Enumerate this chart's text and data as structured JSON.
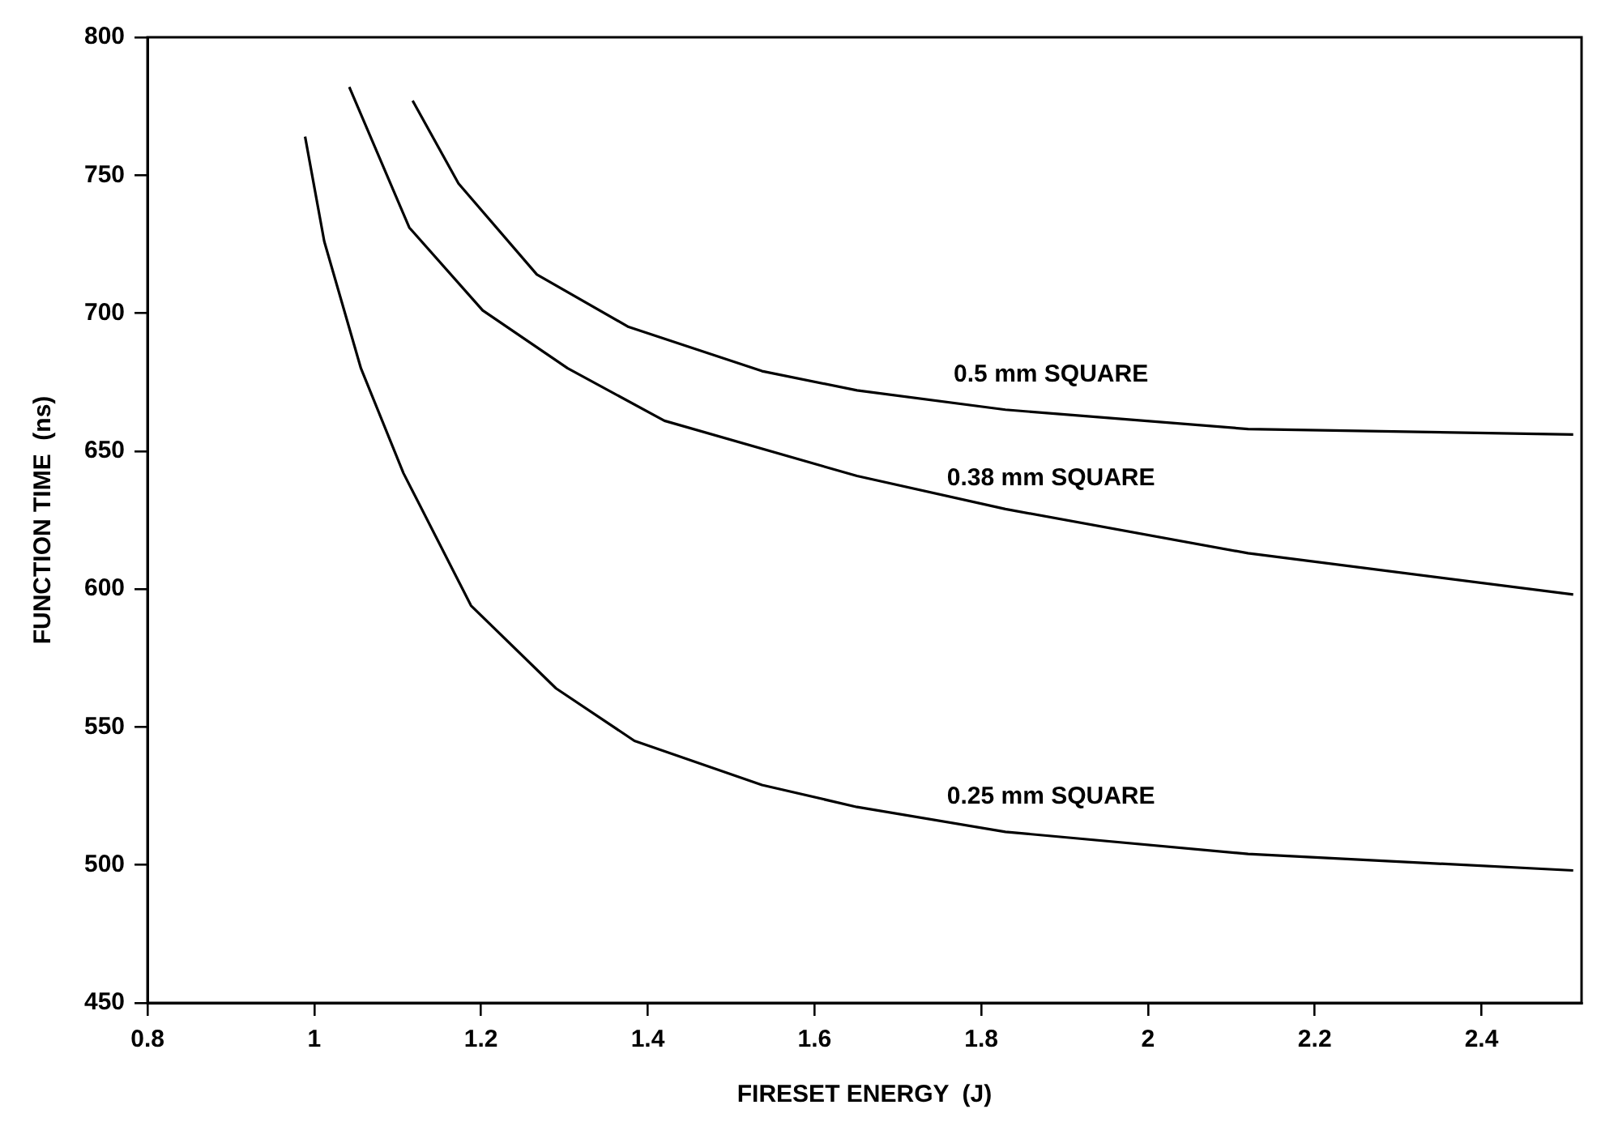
{
  "chart_data": {
    "type": "line",
    "xlabel": "FIRESET ENERGY  (J)",
    "ylabel": "FUNCTION TIME  (ns)",
    "xlim": [
      0.8,
      2.52
    ],
    "xticks": [
      0.8,
      1,
      1.2,
      1.4,
      1.6,
      1.8,
      2,
      2.2,
      2.4
    ],
    "ylim": [
      450,
      800
    ],
    "yticks": [
      450,
      500,
      550,
      600,
      650,
      700,
      750,
      800
    ],
    "grid": false,
    "legend": false,
    "marker": "none",
    "line_style": "solid",
    "series": [
      {
        "name": "0.25 mm SQUARE",
        "color": "#000000",
        "x": [
          0.989,
          1.012,
          1.056,
          1.107,
          1.188,
          1.29,
          1.384,
          1.537,
          1.651,
          1.829,
          2.12,
          2.51
        ],
        "values": [
          764,
          726,
          680,
          642,
          594,
          564,
          545,
          529,
          521,
          512,
          504,
          498
        ]
      },
      {
        "name": "0.38 mm SQUARE",
        "color": "#000000",
        "x": [
          1.042,
          1.114,
          1.202,
          1.304,
          1.42,
          1.651,
          1.829,
          2.12,
          2.51
        ],
        "values": [
          782,
          731,
          701,
          680,
          661,
          641,
          629,
          613,
          598
        ]
      },
      {
        "name": "0.5 mm SQUARE",
        "color": "#000000",
        "x": [
          1.118,
          1.173,
          1.267,
          1.377,
          1.537,
          1.651,
          1.829,
          2.12,
          2.51
        ],
        "values": [
          777,
          747,
          714,
          695,
          679,
          672,
          665,
          658,
          656
        ]
      }
    ]
  }
}
